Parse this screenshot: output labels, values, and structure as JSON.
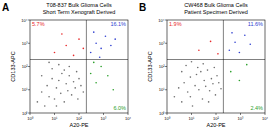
{
  "chart_data": [
    {
      "type": "scatter",
      "panel_label": "A",
      "title": "T08-837 Bulk Glioma Cells",
      "subtitle": "Short Term Xenograft Derived",
      "xlabel": "A20-PE",
      "ylabel": "CD133-APC",
      "log": true,
      "xlim": [
        1,
        10000
      ],
      "ylim": [
        1,
        10000
      ],
      "xticks": [
        {
          "value": 1,
          "label": "10⁰"
        },
        {
          "value": 10,
          "label": "10¹"
        },
        {
          "value": 100,
          "label": "10²"
        },
        {
          "value": 1000,
          "label": "10³"
        },
        {
          "value": 10000,
          "label": "10⁴"
        }
      ],
      "yticks": [
        {
          "value": 1,
          "label": "10⁰"
        },
        {
          "value": 10,
          "label": "10¹"
        },
        {
          "value": 100,
          "label": "10²"
        },
        {
          "value": 1000,
          "label": "10³"
        },
        {
          "value": 10000,
          "label": "10⁴"
        }
      ],
      "gates": {
        "x": 200,
        "y": 200
      },
      "annotations": [
        {
          "text": "5.7%",
          "color": "#e8282a"
        },
        {
          "text": "16.1%",
          "color": "#3040d0"
        },
        {
          "text": "6.0%",
          "color": "#2ca02c"
        }
      ],
      "series": [
        {
          "color": "#707070",
          "x": [
            2,
            3,
            4,
            5,
            6,
            8,
            10,
            12,
            15,
            18,
            20,
            25,
            30,
            35,
            40,
            50,
            60,
            70,
            80,
            90,
            100,
            120,
            150,
            8,
            15,
            25,
            40,
            3,
            6,
            12
          ],
          "values": [
            3,
            8,
            2,
            15,
            5,
            30,
            4,
            12,
            25,
            7,
            50,
            3,
            18,
            9,
            40,
            6,
            22,
            12,
            60,
            4,
            30,
            15,
            8,
            80,
            120,
            70,
            100,
            40,
            150,
            2
          ]
        },
        {
          "color": "#e8282a",
          "x": [
            10,
            30,
            60,
            100,
            20,
            150
          ],
          "values": [
            400,
            800,
            300,
            1500,
            2500,
            600
          ]
        },
        {
          "color": "#3040d0",
          "x": [
            300,
            500,
            800,
            1200,
            400,
            2000,
            700,
            3000
          ],
          "values": [
            400,
            1000,
            600,
            2000,
            3000,
            800,
            250,
            1500
          ]
        },
        {
          "color": "#2ca02c",
          "x": [
            300,
            500,
            800,
            1500,
            400,
            2500
          ],
          "values": [
            50,
            20,
            100,
            40,
            150,
            10
          ]
        }
      ]
    },
    {
      "type": "scatter",
      "panel_label": "B",
      "title": "CW468 Bulk Glioma Cells",
      "subtitle": "Patient Specimen Derived",
      "xlabel": "A20-PE",
      "ylabel": "CD133-APC",
      "log": true,
      "xlim": [
        1,
        10000
      ],
      "ylim": [
        1,
        10000
      ],
      "xticks": [
        {
          "value": 1,
          "label": "10⁰"
        },
        {
          "value": 10,
          "label": "10¹"
        },
        {
          "value": 100,
          "label": "10²"
        },
        {
          "value": 1000,
          "label": "10³"
        },
        {
          "value": 10000,
          "label": "10⁴"
        }
      ],
      "yticks": [
        {
          "value": 1,
          "label": "10⁰"
        },
        {
          "value": 10,
          "label": "10¹"
        },
        {
          "value": 100,
          "label": "10²"
        },
        {
          "value": 1000,
          "label": "10³"
        },
        {
          "value": 10000,
          "label": "10⁴"
        }
      ],
      "gates": {
        "x": 200,
        "y": 200
      },
      "annotations": [
        {
          "text": "1.9%",
          "color": "#e8282a"
        },
        {
          "text": "11.6%",
          "color": "#3040d0"
        },
        {
          "text": "2.4%",
          "color": "#2ca02c"
        }
      ],
      "series": [
        {
          "color": "#707070",
          "x": [
            2,
            3,
            4,
            5,
            7,
            9,
            11,
            14,
            16,
            20,
            24,
            28,
            33,
            38,
            45,
            55,
            65,
            75,
            85,
            95,
            110,
            130,
            160,
            6,
            10,
            18,
            30,
            4,
            9,
            50
          ],
          "values": [
            5,
            12,
            3,
            20,
            8,
            35,
            2,
            15,
            45,
            10,
            60,
            4,
            25,
            14,
            70,
            9,
            30,
            18,
            90,
            6,
            40,
            20,
            11,
            110,
            160,
            90,
            130,
            60,
            5,
            3
          ]
        },
        {
          "color": "#e8282a",
          "x": [
            20,
            60,
            120
          ],
          "values": [
            500,
            1200,
            350
          ]
        },
        {
          "color": "#3040d0",
          "x": [
            350,
            600,
            900,
            1500,
            450,
            2500
          ],
          "values": [
            500,
            1100,
            400,
            2200,
            2800,
            900
          ]
        },
        {
          "color": "#2ca02c",
          "x": [
            400,
            900,
            1800
          ],
          "values": [
            60,
            25,
            120
          ]
        }
      ]
    }
  ]
}
